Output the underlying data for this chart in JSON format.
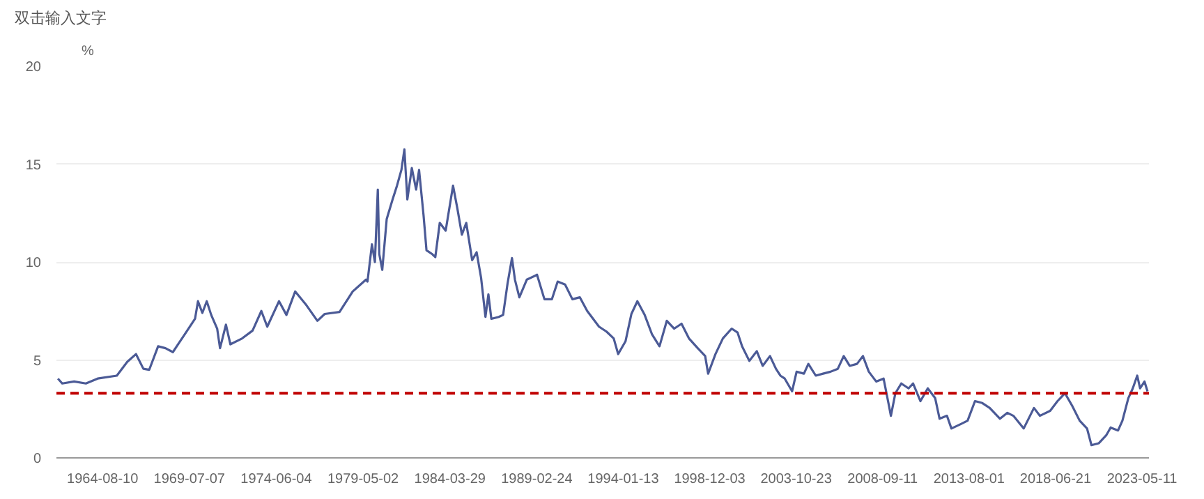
{
  "chart_data": {
    "type": "line",
    "annotations": [
      "双击输入文字"
    ],
    "ylabel": "%",
    "xlim": [
      "1962-01",
      "2023-10"
    ],
    "ylim": [
      0,
      20
    ],
    "yticks": [
      0,
      5,
      10,
      15,
      20
    ],
    "xticks": [
      "1964-08-10",
      "1969-07-07",
      "1974-06-04",
      "1979-05-02",
      "1984-03-29",
      "1989-02-24",
      "1994-01-13",
      "1998-12-03",
      "2003-10-23",
      "2008-09-11",
      "2013-08-01",
      "2018-06-21",
      "2023-05-11"
    ],
    "grid": "y",
    "marker": "none",
    "line_style": "solid",
    "ref_lines": [
      {
        "axis": "y",
        "value": 3.3,
        "label": null,
        "color": "#c00000",
        "line_style": "dashed"
      }
    ],
    "series": [
      {
        "color": "#4b5a96",
        "x": [
          "1962-02",
          "1962-05",
          "1963-01",
          "1963-09",
          "1964-05",
          "1965-06",
          "1966-01",
          "1966-07",
          "1966-12",
          "1967-04",
          "1967-10",
          "1968-03",
          "1968-08",
          "1969-04",
          "1969-11",
          "1970-01",
          "1970-04",
          "1970-07",
          "1970-10",
          "1971-02",
          "1971-04",
          "1971-08",
          "1971-11",
          "1972-07",
          "1973-02",
          "1973-08",
          "1973-12",
          "1974-08",
          "1975-01",
          "1975-07",
          "1976-02",
          "1976-10",
          "1977-03",
          "1978-01",
          "1978-10",
          "1979-07",
          "1979-08",
          "1979-11",
          "1980-01",
          "1980-03",
          "1980-04",
          "1980-06",
          "1980-09",
          "1981-01",
          "1981-04",
          "1981-07",
          "1981-09",
          "1981-11",
          "1982-02",
          "1982-05",
          "1982-07",
          "1982-10",
          "1982-12",
          "1983-04",
          "1983-06",
          "1983-09",
          "1984-01",
          "1984-06",
          "1984-09",
          "1984-12",
          "1985-03",
          "1985-07",
          "1985-10",
          "1986-01",
          "1986-04",
          "1986-06",
          "1986-08",
          "1987-01",
          "1987-04",
          "1987-07",
          "1987-10",
          "1987-12",
          "1988-03",
          "1988-08",
          "1989-03",
          "1989-08",
          "1990-01",
          "1990-05",
          "1990-10",
          "1991-03",
          "1991-08",
          "1992-01",
          "1992-09",
          "1993-02",
          "1993-07",
          "1993-10",
          "1994-03",
          "1994-07",
          "1994-11",
          "1995-04",
          "1995-09",
          "1996-02",
          "1996-07",
          "1996-12",
          "1997-05",
          "1997-10",
          "1998-04",
          "1998-09",
          "1998-11",
          "1999-04",
          "1999-09",
          "2000-03",
          "2000-07",
          "2000-10",
          "2001-03",
          "2001-08",
          "2001-12",
          "2002-05",
          "2002-09",
          "2002-12",
          "2003-03",
          "2003-08",
          "2003-11",
          "2004-04",
          "2004-07",
          "2004-12",
          "2005-05",
          "2005-10",
          "2006-03",
          "2006-07",
          "2006-11",
          "2007-04",
          "2007-08",
          "2007-12",
          "2008-05",
          "2008-10",
          "2009-01",
          "2009-03",
          "2009-06",
          "2009-10",
          "2010-03",
          "2010-06",
          "2010-11",
          "2011-04",
          "2011-09",
          "2011-12",
          "2012-05",
          "2012-08",
          "2013-03",
          "2013-07",
          "2013-12",
          "2014-05",
          "2014-10",
          "2015-05",
          "2015-10",
          "2016-02",
          "2016-09",
          "2017-04",
          "2017-08",
          "2018-03",
          "2018-08",
          "2019-01",
          "2019-06",
          "2019-11",
          "2020-04",
          "2020-07",
          "2020-12",
          "2021-05",
          "2021-08",
          "2022-01",
          "2022-04",
          "2022-08",
          "2022-11",
          "2023-02",
          "2023-04",
          "2023-07",
          "2023-09"
        ],
        "values": [
          4.05,
          3.8,
          3.9,
          3.8,
          4.05,
          4.2,
          4.9,
          5.3,
          4.55,
          4.5,
          5.7,
          5.6,
          5.4,
          6.3,
          7.1,
          8.0,
          7.4,
          8.0,
          7.3,
          6.6,
          5.6,
          6.8,
          5.8,
          6.1,
          6.5,
          7.5,
          6.7,
          8.0,
          7.3,
          8.5,
          7.85,
          7.0,
          7.35,
          7.45,
          8.5,
          9.1,
          9.0,
          10.9,
          10.0,
          13.7,
          10.4,
          9.6,
          12.2,
          13.2,
          13.9,
          14.7,
          15.75,
          13.2,
          14.8,
          13.7,
          14.7,
          12.4,
          10.6,
          10.4,
          10.25,
          12.0,
          11.6,
          13.9,
          12.7,
          11.4,
          12.0,
          10.1,
          10.5,
          9.2,
          7.2,
          8.35,
          7.1,
          7.2,
          7.3,
          8.9,
          10.2,
          9.1,
          8.2,
          9.1,
          9.35,
          8.1,
          8.1,
          9.0,
          8.85,
          8.1,
          8.2,
          7.5,
          6.7,
          6.45,
          6.1,
          5.3,
          5.95,
          7.35,
          8.0,
          7.3,
          6.3,
          5.7,
          7.0,
          6.6,
          6.85,
          6.1,
          5.6,
          5.2,
          4.3,
          5.3,
          6.1,
          6.6,
          6.4,
          5.7,
          4.95,
          5.45,
          4.7,
          5.2,
          4.55,
          4.2,
          4.05,
          3.4,
          4.4,
          4.3,
          4.8,
          4.2,
          4.3,
          4.4,
          4.55,
          5.2,
          4.7,
          4.8,
          5.2,
          4.4,
          3.9,
          4.05,
          2.9,
          2.15,
          3.3,
          3.8,
          3.55,
          3.8,
          2.9,
          3.55,
          3.05,
          2.0,
          2.15,
          1.5,
          1.75,
          1.9,
          2.9,
          2.8,
          2.55,
          2.0,
          2.3,
          2.15,
          1.5,
          2.55,
          2.15,
          2.4,
          2.9,
          3.3,
          2.65,
          1.9,
          1.5,
          0.65,
          0.75,
          1.15,
          1.55,
          1.4,
          1.9,
          3.05,
          3.55,
          4.2,
          3.55,
          3.9,
          3.4
        ]
      }
    ]
  }
}
